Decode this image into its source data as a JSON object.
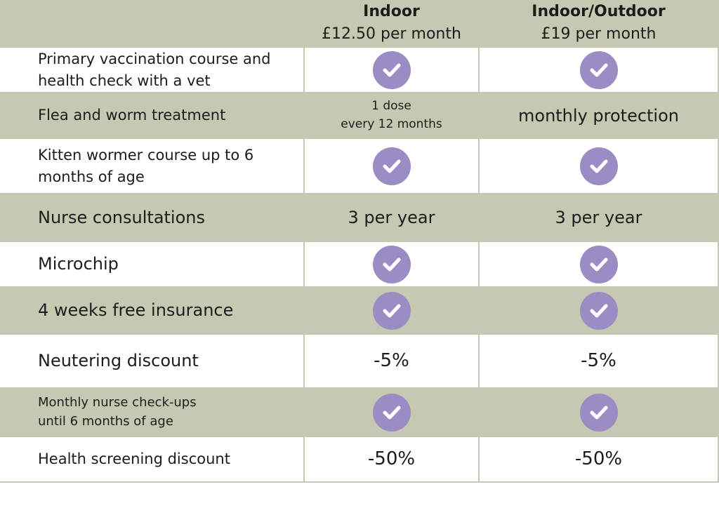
{
  "plans": [
    {
      "name": "Indoor",
      "price": "£12.50 per month"
    },
    {
      "name": "Indoor/Outdoor",
      "price": "£19 per month"
    }
  ],
  "rows": [
    {
      "feature": "Primary vaccination course and\nhealth check with a vet",
      "indoor": "check",
      "outdoor": "check"
    },
    {
      "feature": "Flea and worm treatment",
      "indoor": "1 dose\nevery 12 months",
      "outdoor": "monthly protection"
    },
    {
      "feature": "Kitten wormer course up to 6\nmonths of age",
      "indoor": "check",
      "outdoor": "check"
    },
    {
      "feature": "Nurse consultations",
      "indoor": "3 per year",
      "outdoor": "3 per year"
    },
    {
      "feature": "Microchip",
      "indoor": "check",
      "outdoor": "check"
    },
    {
      "feature": "4 weeks free insurance",
      "indoor": "check",
      "outdoor": "check"
    },
    {
      "feature": "Neutering discount",
      "indoor": "-5%",
      "outdoor": "-5%"
    },
    {
      "feature": "Monthly nurse check-ups\nuntil 6 months of age",
      "indoor": "check",
      "outdoor": "check"
    },
    {
      "feature": "Health screening discount",
      "indoor": "-50%",
      "outdoor": "-50%"
    }
  ],
  "icons": {
    "check": "check-circle-icon"
  },
  "colors": {
    "band": "#c6c9b2",
    "check": "#9b8cc4",
    "white": "#ffffff",
    "text": "#1c1c1c"
  }
}
